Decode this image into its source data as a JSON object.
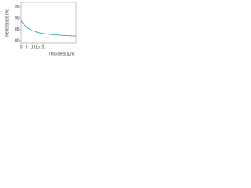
{
  "chart_data": {
    "type": "line",
    "x_label": "Thickness (µm)",
    "y_label": "Reflectance (%)",
    "x": [
      0,
      2,
      5,
      10,
      15,
      20,
      30,
      40,
      50
    ],
    "series": [
      {
        "name": "Reflectance",
        "color": "#2aa6c8",
        "values": [
          89,
          87.5,
          86,
          84.5,
          83.7,
          83.2,
          82.6,
          82.3,
          82.1
        ]
      }
    ],
    "xlim": [
      0,
      50
    ],
    "xticks": [
      0,
      5,
      10,
      15,
      20
    ],
    "ylim": [
      79,
      97
    ],
    "yticks": [
      80,
      85,
      90,
      95
    ]
  }
}
